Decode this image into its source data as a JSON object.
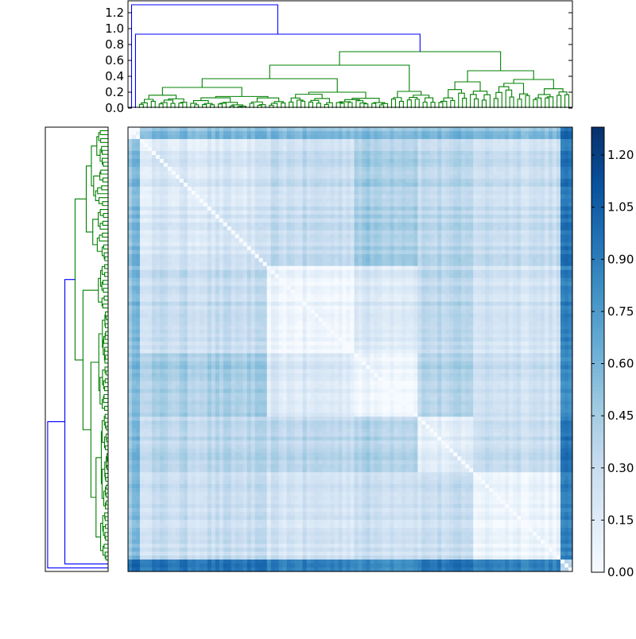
{
  "chart_data": [
    {
      "type": "dendrogram",
      "name": "top-dendrogram",
      "orientation": "top",
      "ylim": [
        0,
        1.35
      ],
      "yticks": [
        0.0,
        0.2,
        0.4,
        0.6,
        0.8,
        1.0,
        1.2
      ],
      "ytick_labels": [
        "0.0",
        "0.2",
        "0.4",
        "0.6",
        "0.8",
        "1.0",
        "1.2"
      ],
      "above_threshold_color": "#0000ff",
      "cluster_color": "#008000",
      "root_height": 1.3,
      "second_merge_height": 0.93,
      "green_root_height": 0.71,
      "major_merges": [
        {
          "height": 0.54,
          "label": "left-cluster-merge"
        },
        {
          "height": 0.47,
          "label": "right-cluster-merge"
        },
        {
          "height": 0.37,
          "label": "mid-merge"
        },
        {
          "height": 0.26,
          "label": "lower-merge"
        }
      ],
      "leaf_count": 112
    },
    {
      "type": "dendrogram",
      "name": "left-dendrogram",
      "orientation": "left",
      "root_height": 1.3,
      "second_merge_height": 0.93,
      "green_root_height": 0.71,
      "leaf_count": 112
    },
    {
      "type": "heatmap",
      "name": "distance-matrix",
      "title": "",
      "xlabel": "",
      "ylabel": "",
      "n_rows": 112,
      "n_cols": 112,
      "colormap": "Blues",
      "vmin": 0.0,
      "vmax": 1.28,
      "block_boundaries_fraction": [
        0.0,
        0.03,
        0.31,
        0.51,
        0.65,
        0.78,
        0.97,
        1.0
      ],
      "block_mean_distances": [
        [
          0.0,
          0.55,
          0.55,
          0.55,
          0.55,
          0.55,
          0.95
        ],
        [
          0.55,
          0.2,
          0.3,
          0.45,
          0.35,
          0.3,
          0.9
        ],
        [
          0.55,
          0.3,
          0.06,
          0.2,
          0.35,
          0.25,
          0.85
        ],
        [
          0.55,
          0.45,
          0.2,
          0.08,
          0.4,
          0.3,
          0.8
        ],
        [
          0.55,
          0.35,
          0.35,
          0.4,
          0.12,
          0.3,
          0.9
        ],
        [
          0.55,
          0.3,
          0.25,
          0.3,
          0.3,
          0.1,
          0.85
        ],
        [
          0.95,
          0.9,
          0.85,
          0.8,
          0.9,
          0.85,
          0.3
        ]
      ]
    },
    {
      "type": "colorbar",
      "name": "colorbar",
      "vmin": 0.0,
      "vmax": 1.28,
      "ticks": [
        0.0,
        0.15,
        0.3,
        0.45,
        0.6,
        0.75,
        0.9,
        1.05,
        1.2
      ],
      "tick_labels": [
        "0.00",
        "0.15",
        "0.30",
        "0.45",
        "0.60",
        "0.75",
        "0.90",
        "1.05",
        "1.20"
      ]
    }
  ]
}
